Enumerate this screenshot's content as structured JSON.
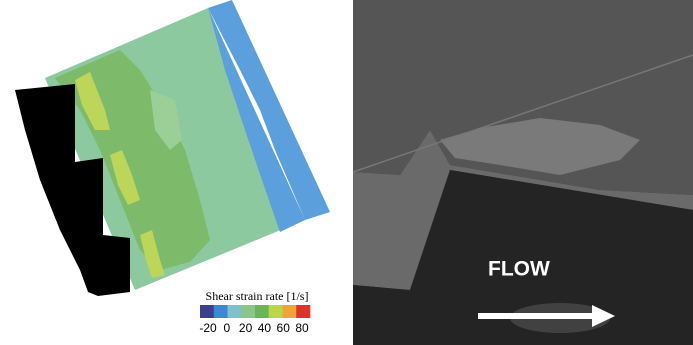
{
  "contour_plot": {
    "colorbar": {
      "title": "Shear strain rate [1/s]",
      "ticks": [
        -20,
        0,
        20,
        40,
        60,
        80
      ],
      "colors": [
        "#3c3f8e",
        "#3f86d2",
        "#80c0c8",
        "#8cc48c",
        "#6db35c",
        "#b9d54a",
        "#f0a33a",
        "#d9352a"
      ]
    }
  },
  "photo": {
    "label": "FLOW"
  }
}
